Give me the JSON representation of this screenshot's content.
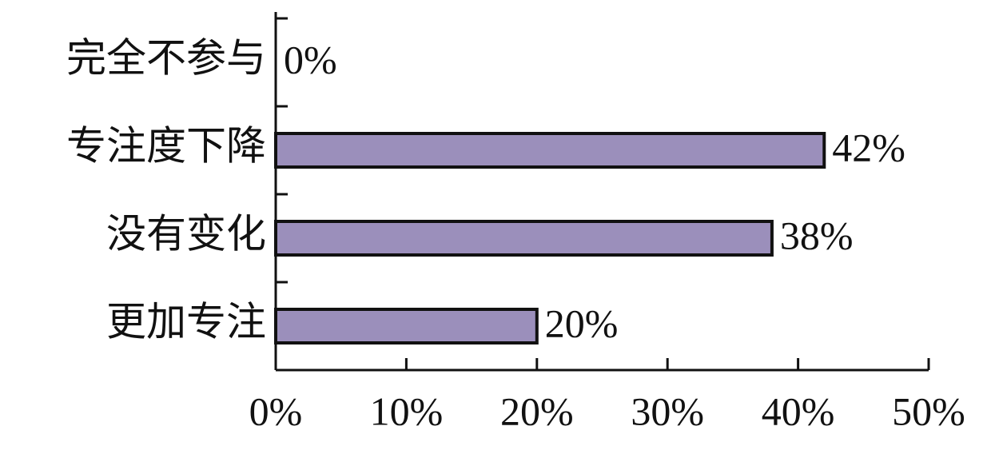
{
  "chart_data": {
    "type": "bar",
    "orientation": "horizontal",
    "categories": [
      "完全不参与",
      "专注度下降",
      "没有变化",
      "更加专注"
    ],
    "values": [
      0,
      42,
      38,
      20
    ],
    "value_labels": [
      "0%",
      "42%",
      "38%",
      "20%"
    ],
    "color": "#9b8fbb",
    "xlim": [
      0,
      50
    ],
    "xticks": [
      {
        "value": 0,
        "label": "0%"
      },
      {
        "value": 10,
        "label": "10%"
      },
      {
        "value": 20,
        "label": "20%"
      },
      {
        "value": 30,
        "label": "30%"
      },
      {
        "value": 40,
        "label": "40%"
      },
      {
        "value": 50,
        "label": "50%"
      }
    ]
  }
}
